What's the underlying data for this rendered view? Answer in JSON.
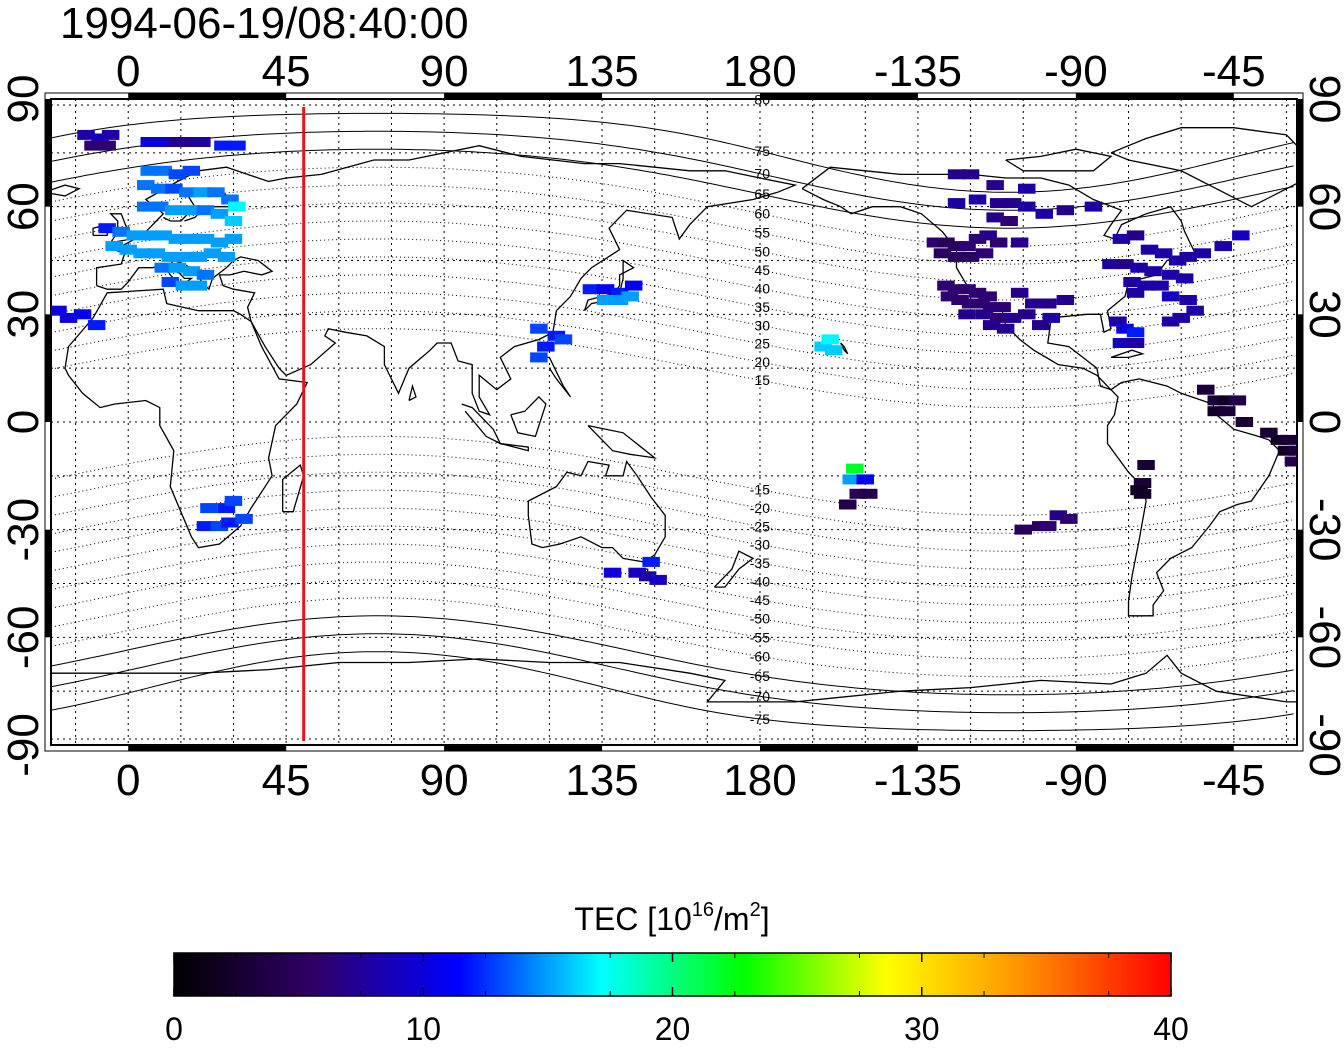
{
  "title": "1994-06-19/08:40:00",
  "map": {
    "lon_ticks": [
      {
        "lon": 0,
        "label": "0"
      },
      {
        "lon": 45,
        "label": "45"
      },
      {
        "lon": 90,
        "label": "90"
      },
      {
        "lon": 135,
        "label": "135"
      },
      {
        "lon": 180,
        "label": "180"
      },
      {
        "lon": 225,
        "label": "-135"
      },
      {
        "lon": 270,
        "label": "-90"
      },
      {
        "lon": 315,
        "label": "-45"
      }
    ],
    "lat_ticks": [
      {
        "lat": 90,
        "label": "90"
      },
      {
        "lat": 60,
        "label": "60"
      },
      {
        "lat": 30,
        "label": "30"
      },
      {
        "lat": 0,
        "label": "0"
      },
      {
        "lat": -30,
        "label": "-30"
      },
      {
        "lat": -60,
        "label": "-60"
      },
      {
        "lat": -90,
        "label": "-90"
      }
    ],
    "lon_range": [
      -22,
      333
    ],
    "lat_range": [
      -90,
      90
    ],
    "terminator_lon": 50,
    "terminator_color": "#e8121b",
    "grid": true
  },
  "magnetic_lat_labels": [
    "80",
    "75",
    "70",
    "65",
    "60",
    "55",
    "50",
    "45",
    "40",
    "35",
    "30",
    "25",
    "20",
    "15",
    "-15",
    "-20",
    "-25",
    "-30",
    "-35",
    "-40",
    "-45",
    "-50",
    "-55",
    "-60",
    "-65",
    "-70",
    "-75"
  ],
  "tec_points": [
    {
      "lon": -12,
      "lat": 80,
      "tec": 8
    },
    {
      "lon": -8,
      "lat": 79,
      "tec": 9
    },
    {
      "lon": -5,
      "lat": 80,
      "tec": 8
    },
    {
      "lon": -10,
      "lat": 77,
      "tec": 6
    },
    {
      "lon": -6,
      "lat": 77,
      "tec": 6
    },
    {
      "lon": 6,
      "lat": 78,
      "tec": 10
    },
    {
      "lon": 10,
      "lat": 78,
      "tec": 10
    },
    {
      "lon": 14,
      "lat": 78,
      "tec": 7
    },
    {
      "lon": 18,
      "lat": 78,
      "tec": 7
    },
    {
      "lon": 21,
      "lat": 78,
      "tec": 8
    },
    {
      "lon": 27,
      "lat": 77,
      "tec": 12
    },
    {
      "lon": 31,
      "lat": 77,
      "tec": 12
    },
    {
      "lon": 6,
      "lat": 70,
      "tec": 14
    },
    {
      "lon": 10,
      "lat": 70,
      "tec": 14
    },
    {
      "lon": 14,
      "lat": 69,
      "tec": 13
    },
    {
      "lon": 18,
      "lat": 70,
      "tec": 13
    },
    {
      "lon": 5,
      "lat": 66,
      "tec": 14
    },
    {
      "lon": 9,
      "lat": 65,
      "tec": 14
    },
    {
      "lon": 13,
      "lat": 65,
      "tec": 13
    },
    {
      "lon": 17,
      "lat": 64,
      "tec": 14
    },
    {
      "lon": 21,
      "lat": 64,
      "tec": 15
    },
    {
      "lon": 25,
      "lat": 64,
      "tec": 14
    },
    {
      "lon": 29,
      "lat": 62,
      "tec": 14
    },
    {
      "lon": 31,
      "lat": 60,
      "tec": 17
    },
    {
      "lon": 5,
      "lat": 60,
      "tec": 14
    },
    {
      "lon": 9,
      "lat": 60,
      "tec": 14
    },
    {
      "lon": 13,
      "lat": 59,
      "tec": 15
    },
    {
      "lon": 18,
      "lat": 59,
      "tec": 15
    },
    {
      "lon": 22,
      "lat": 59,
      "tec": 14
    },
    {
      "lon": 26,
      "lat": 58,
      "tec": 15
    },
    {
      "lon": 30,
      "lat": 56,
      "tec": 16
    },
    {
      "lon": -6,
      "lat": 54,
      "tec": 12
    },
    {
      "lon": -2,
      "lat": 53,
      "tec": 14
    },
    {
      "lon": 2,
      "lat": 52,
      "tec": 15
    },
    {
      "lon": 6,
      "lat": 52,
      "tec": 15
    },
    {
      "lon": 10,
      "lat": 52,
      "tec": 15
    },
    {
      "lon": 14,
      "lat": 51,
      "tec": 15
    },
    {
      "lon": 18,
      "lat": 51,
      "tec": 15
    },
    {
      "lon": 22,
      "lat": 51,
      "tec": 15
    },
    {
      "lon": 26,
      "lat": 50,
      "tec": 15
    },
    {
      "lon": 30,
      "lat": 51,
      "tec": 15
    },
    {
      "lon": -4,
      "lat": 49,
      "tec": 15
    },
    {
      "lon": 0,
      "lat": 48,
      "tec": 15
    },
    {
      "lon": 4,
      "lat": 47,
      "tec": 15
    },
    {
      "lon": 8,
      "lat": 47,
      "tec": 15
    },
    {
      "lon": 12,
      "lat": 46,
      "tec": 15
    },
    {
      "lon": 16,
      "lat": 46,
      "tec": 15
    },
    {
      "lon": 20,
      "lat": 46,
      "tec": 15
    },
    {
      "lon": 24,
      "lat": 47,
      "tec": 15
    },
    {
      "lon": 28,
      "lat": 46,
      "tec": 15
    },
    {
      "lon": 10,
      "lat": 43,
      "tec": 14
    },
    {
      "lon": 14,
      "lat": 43,
      "tec": 15
    },
    {
      "lon": 18,
      "lat": 42,
      "tec": 15
    },
    {
      "lon": 22,
      "lat": 41,
      "tec": 14
    },
    {
      "lon": 12,
      "lat": 39,
      "tec": 13
    },
    {
      "lon": 16,
      "lat": 38,
      "tec": 15
    },
    {
      "lon": 20,
      "lat": 38,
      "tec": 15
    },
    {
      "lon": -20,
      "lat": 31,
      "tec": 10
    },
    {
      "lon": -17,
      "lat": 29,
      "tec": 10
    },
    {
      "lon": -13,
      "lat": 30,
      "tec": 11
    },
    {
      "lon": -9,
      "lat": 27,
      "tec": 12
    },
    {
      "lon": 23,
      "lat": -24,
      "tec": 13
    },
    {
      "lon": 28,
      "lat": -24,
      "tec": 12
    },
    {
      "lon": 30,
      "lat": -22,
      "tec": 13
    },
    {
      "lon": 22,
      "lat": -29,
      "tec": 12
    },
    {
      "lon": 26,
      "lat": -29,
      "tec": 13
    },
    {
      "lon": 29,
      "lat": -28,
      "tec": 12
    },
    {
      "lon": 33,
      "lat": -27,
      "tec": 13
    },
    {
      "lon": 132,
      "lat": 37,
      "tec": 12
    },
    {
      "lon": 136,
      "lat": 37,
      "tec": 11
    },
    {
      "lon": 140,
      "lat": 36,
      "tec": 12
    },
    {
      "lon": 144,
      "lat": 38,
      "tec": 11
    },
    {
      "lon": 136,
      "lat": 34,
      "tec": 15
    },
    {
      "lon": 140,
      "lat": 34,
      "tec": 15
    },
    {
      "lon": 143,
      "lat": 35,
      "tec": 15
    },
    {
      "lon": 117,
      "lat": 26,
      "tec": 13
    },
    {
      "lon": 122,
      "lat": 24,
      "tec": 12
    },
    {
      "lon": 119,
      "lat": 21,
      "tec": 12
    },
    {
      "lon": 124,
      "lat": 23,
      "tec": 13
    },
    {
      "lon": 117,
      "lat": 18,
      "tec": 13
    },
    {
      "lon": 138,
      "lat": -42,
      "tec": 10
    },
    {
      "lon": 145,
      "lat": -42,
      "tec": 9
    },
    {
      "lon": 148,
      "lat": -43,
      "tec": 8
    },
    {
      "lon": 151,
      "lat": -44,
      "tec": 9
    },
    {
      "lon": 149,
      "lat": -39,
      "tec": 12
    },
    {
      "lon": 198,
      "lat": 21,
      "tec": 16
    },
    {
      "lon": 201,
      "lat": 20,
      "tec": 16
    },
    {
      "lon": 200,
      "lat": 23,
      "tec": 17
    },
    {
      "lon": 207,
      "lat": -13,
      "tec": 22
    },
    {
      "lon": 206,
      "lat": -16,
      "tec": 15
    },
    {
      "lon": 210,
      "lat": -16,
      "tec": 11
    },
    {
      "lon": 208,
      "lat": -20,
      "tec": 5
    },
    {
      "lon": 211,
      "lat": -20,
      "tec": 4
    },
    {
      "lon": 205,
      "lat": -23,
      "tec": 4
    },
    {
      "lon": 236,
      "lat": 69,
      "tec": 7
    },
    {
      "lon": 240,
      "lat": 69,
      "tec": 7
    },
    {
      "lon": 247,
      "lat": 66,
      "tec": 7
    },
    {
      "lon": 256,
      "lat": 65,
      "tec": 8
    },
    {
      "lon": 236,
      "lat": 61,
      "tec": 8
    },
    {
      "lon": 242,
      "lat": 62,
      "tec": 8
    },
    {
      "lon": 248,
      "lat": 61,
      "tec": 7
    },
    {
      "lon": 252,
      "lat": 61,
      "tec": 7
    },
    {
      "lon": 256,
      "lat": 60,
      "tec": 8
    },
    {
      "lon": 261,
      "lat": 58,
      "tec": 8
    },
    {
      "lon": 267,
      "lat": 59,
      "tec": 7
    },
    {
      "lon": 275,
      "lat": 60,
      "tec": 8
    },
    {
      "lon": 247,
      "lat": 57,
      "tec": 7
    },
    {
      "lon": 251,
      "lat": 56,
      "tec": 6
    },
    {
      "lon": 230,
      "lat": 50,
      "tec": 6
    },
    {
      "lon": 233,
      "lat": 50,
      "tec": 5
    },
    {
      "lon": 236,
      "lat": 49,
      "tec": 5
    },
    {
      "lon": 239,
      "lat": 49,
      "tec": 6
    },
    {
      "lon": 242,
      "lat": 51,
      "tec": 6
    },
    {
      "lon": 245,
      "lat": 52,
      "tec": 7
    },
    {
      "lon": 248,
      "lat": 50,
      "tec": 6
    },
    {
      "lon": 232,
      "lat": 47,
      "tec": 5
    },
    {
      "lon": 236,
      "lat": 46,
      "tec": 5
    },
    {
      "lon": 240,
      "lat": 46,
      "tec": 5
    },
    {
      "lon": 244,
      "lat": 47,
      "tec": 6
    },
    {
      "lon": 254,
      "lat": 50,
      "tec": 7
    },
    {
      "lon": 233,
      "lat": 38,
      "tec": 6
    },
    {
      "lon": 236,
      "lat": 37,
      "tec": 6
    },
    {
      "lon": 239,
      "lat": 37,
      "tec": 6
    },
    {
      "lon": 242,
      "lat": 36,
      "tec": 6
    },
    {
      "lon": 245,
      "lat": 35,
      "tec": 6
    },
    {
      "lon": 234,
      "lat": 35,
      "tec": 6
    },
    {
      "lon": 237,
      "lat": 34,
      "tec": 6
    },
    {
      "lon": 240,
      "lat": 33,
      "tec": 6
    },
    {
      "lon": 243,
      "lat": 33,
      "tec": 6
    },
    {
      "lon": 246,
      "lat": 32,
      "tec": 6
    },
    {
      "lon": 249,
      "lat": 32,
      "tec": 6
    },
    {
      "lon": 239,
      "lat": 30,
      "tec": 7
    },
    {
      "lon": 244,
      "lat": 30,
      "tec": 7
    },
    {
      "lon": 248,
      "lat": 29,
      "tec": 6
    },
    {
      "lon": 252,
      "lat": 29,
      "tec": 7
    },
    {
      "lon": 246,
      "lat": 27,
      "tec": 7
    },
    {
      "lon": 250,
      "lat": 26,
      "tec": 7
    },
    {
      "lon": 254,
      "lat": 36,
      "tec": 7
    },
    {
      "lon": 258,
      "lat": 33,
      "tec": 7
    },
    {
      "lon": 256,
      "lat": 30,
      "tec": 7
    },
    {
      "lon": 262,
      "lat": 33,
      "tec": 7
    },
    {
      "lon": 263,
      "lat": 29,
      "tec": 8
    },
    {
      "lon": 267,
      "lat": 34,
      "tec": 7
    },
    {
      "lon": 260,
      "lat": 27,
      "tec": 7
    },
    {
      "lon": 283,
      "lat": 51,
      "tec": 8
    },
    {
      "lon": 287,
      "lat": 52,
      "tec": 7
    },
    {
      "lon": 291,
      "lat": 48,
      "tec": 8
    },
    {
      "lon": 295,
      "lat": 47,
      "tec": 8
    },
    {
      "lon": 299,
      "lat": 45,
      "tec": 8
    },
    {
      "lon": 302,
      "lat": 46,
      "tec": 8
    },
    {
      "lon": 306,
      "lat": 47,
      "tec": 8
    },
    {
      "lon": 312,
      "lat": 49,
      "tec": 8
    },
    {
      "lon": 317,
      "lat": 52,
      "tec": 9
    },
    {
      "lon": 280,
      "lat": 44,
      "tec": 8
    },
    {
      "lon": 284,
      "lat": 44,
      "tec": 7
    },
    {
      "lon": 288,
      "lat": 43,
      "tec": 8
    },
    {
      "lon": 292,
      "lat": 42,
      "tec": 8
    },
    {
      "lon": 297,
      "lat": 41,
      "tec": 8
    },
    {
      "lon": 301,
      "lat": 40,
      "tec": 8
    },
    {
      "lon": 286,
      "lat": 39,
      "tec": 8
    },
    {
      "lon": 290,
      "lat": 38,
      "tec": 8
    },
    {
      "lon": 294,
      "lat": 38,
      "tec": 8
    },
    {
      "lon": 287,
      "lat": 36,
      "tec": 8
    },
    {
      "lon": 297,
      "lat": 35,
      "tec": 9
    },
    {
      "lon": 302,
      "lat": 34,
      "tec": 8
    },
    {
      "lon": 300,
      "lat": 29,
      "tec": 8
    },
    {
      "lon": 297,
      "lat": 28,
      "tec": 8
    },
    {
      "lon": 304,
      "lat": 31,
      "tec": 8
    },
    {
      "lon": 282,
      "lat": 28,
      "tec": 8
    },
    {
      "lon": 284,
      "lat": 26,
      "tec": 10
    },
    {
      "lon": 287,
      "lat": 25,
      "tec": 12
    },
    {
      "lon": 283,
      "lat": 22,
      "tec": 9
    },
    {
      "lon": 287,
      "lat": 22,
      "tec": 8
    },
    {
      "lon": 307,
      "lat": 9,
      "tec": 3
    },
    {
      "lon": 310,
      "lat": 6,
      "tec": 3
    },
    {
      "lon": 313,
      "lat": 6,
      "tec": 2
    },
    {
      "lon": 316,
      "lat": 6,
      "tec": 4
    },
    {
      "lon": 310,
      "lat": 3,
      "tec": 2
    },
    {
      "lon": 313,
      "lat": 3,
      "tec": 3
    },
    {
      "lon": 318,
      "lat": 0,
      "tec": 3
    },
    {
      "lon": 325,
      "lat": -3,
      "tec": 3
    },
    {
      "lon": 328,
      "lat": -5,
      "tec": 2
    },
    {
      "lon": 331,
      "lat": -5,
      "tec": 3
    },
    {
      "lon": 330,
      "lat": -8,
      "tec": 2
    },
    {
      "lon": 333,
      "lat": -8,
      "tec": 3
    },
    {
      "lon": 332,
      "lat": -11,
      "tec": 4
    },
    {
      "lon": 290,
      "lat": -12,
      "tec": 3
    },
    {
      "lon": 289,
      "lat": -17,
      "tec": 3
    },
    {
      "lon": 288,
      "lat": -19,
      "tec": 2
    },
    {
      "lon": 289,
      "lat": -20,
      "tec": 2
    },
    {
      "lon": 265,
      "lat": -26,
      "tec": 7
    },
    {
      "lon": 268,
      "lat": -27,
      "tec": 6
    },
    {
      "lon": 260,
      "lat": -29,
      "tec": 5
    },
    {
      "lon": 262,
      "lat": -29,
      "tec": 6
    },
    {
      "lon": 255,
      "lat": -30,
      "tec": 5
    }
  ],
  "colorbar": {
    "label_prefix": "TEC  [10",
    "label_sup1": "16",
    "label_mid": "/m",
    "label_sup2": "2",
    "label_suffix": "]",
    "min": 0,
    "max": 40,
    "ticks": [
      "0",
      "10",
      "20",
      "30",
      "40"
    ],
    "stops": [
      "#000000",
      "#30006a",
      "#0000ff",
      "#00ffff",
      "#00ff00",
      "#ffff00",
      "#ff8c00",
      "#ff0000"
    ]
  }
}
